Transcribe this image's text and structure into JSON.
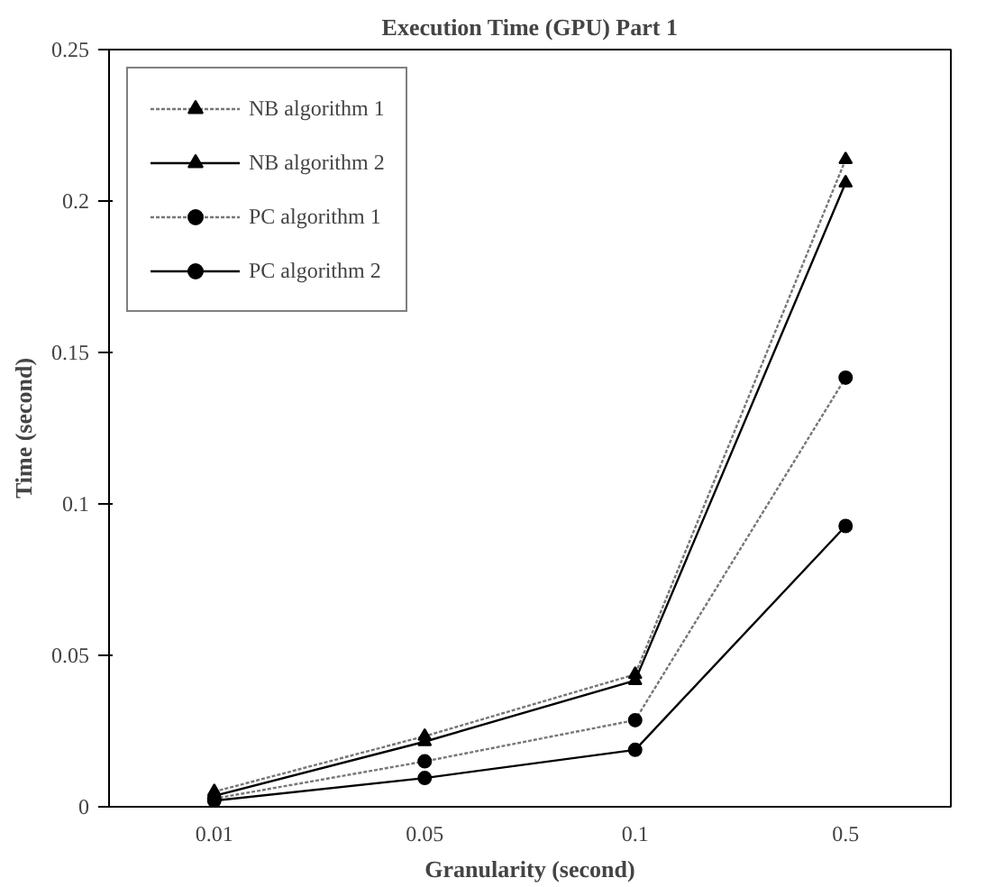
{
  "chart_data": {
    "type": "line",
    "title": "Execution Time (GPU) Part 1",
    "xlabel": "Granularity (second)",
    "ylabel": "Time (second)",
    "categories": [
      "0.01",
      "0.05",
      "0.1",
      "0.5"
    ],
    "ylim": [
      0,
      0.25
    ],
    "yticks": [
      0,
      0.05,
      0.1,
      0.15,
      0.2,
      0.25
    ],
    "grid": false,
    "legend": "top left",
    "series": [
      {
        "name": "NB algorithm 1",
        "color": "#777777",
        "marker": "triangle",
        "line_style": "dotted",
        "values": [
          0.005,
          0.0233,
          0.0437,
          0.2137
        ]
      },
      {
        "name": "NB algorithm 2",
        "color": "#000000",
        "marker": "triangle",
        "line_style": "solid",
        "values": [
          0.0036,
          0.0215,
          0.0417,
          0.206
        ]
      },
      {
        "name": "PC algorithm 1",
        "color": "#777777",
        "marker": "circle",
        "line_style": "dotted",
        "values": [
          0.0027,
          0.015,
          0.0286,
          0.1417
        ]
      },
      {
        "name": "PC algorithm 2",
        "color": "#000000",
        "marker": "circle",
        "line_style": "solid",
        "values": [
          0.002,
          0.0095,
          0.0188,
          0.0927
        ]
      }
    ]
  }
}
